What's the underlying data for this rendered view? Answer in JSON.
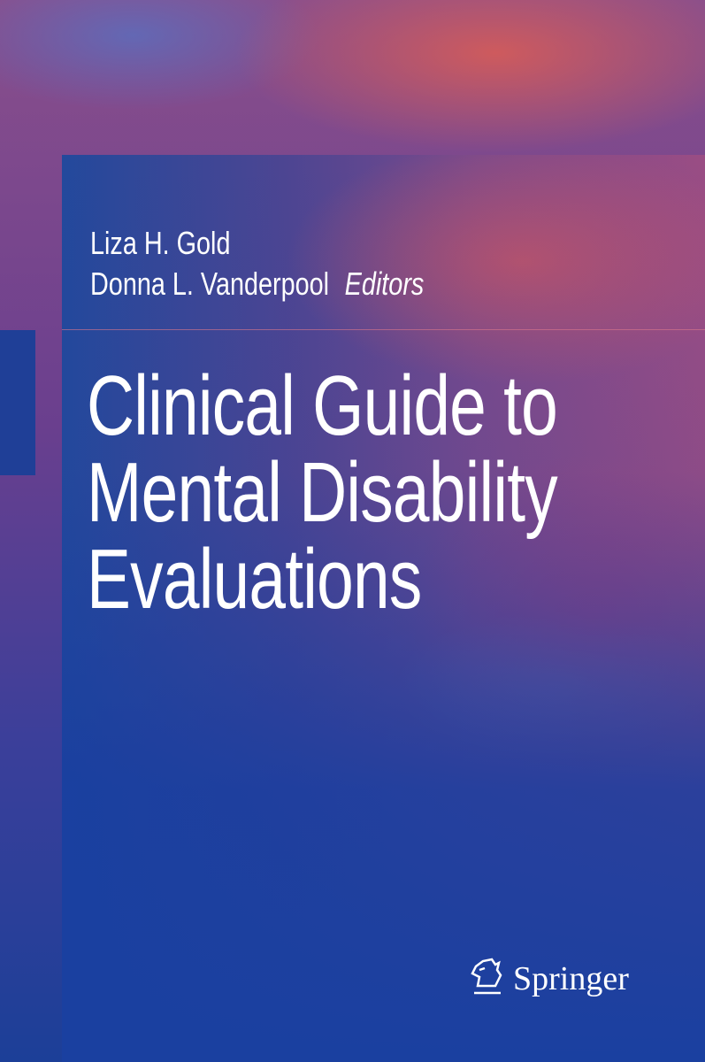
{
  "cover": {
    "editors": [
      "Liza H. Gold",
      "Donna L. Vanderpool"
    ],
    "editors_label": "Editors",
    "title_lines": [
      "Clinical Guide to",
      "Mental Disability",
      "Evaluations"
    ],
    "publisher": "Springer",
    "publisher_logo_icon": "knight-horse-icon"
  },
  "colors": {
    "panel_blue": "#1f3f97",
    "text": "#ffffff"
  }
}
